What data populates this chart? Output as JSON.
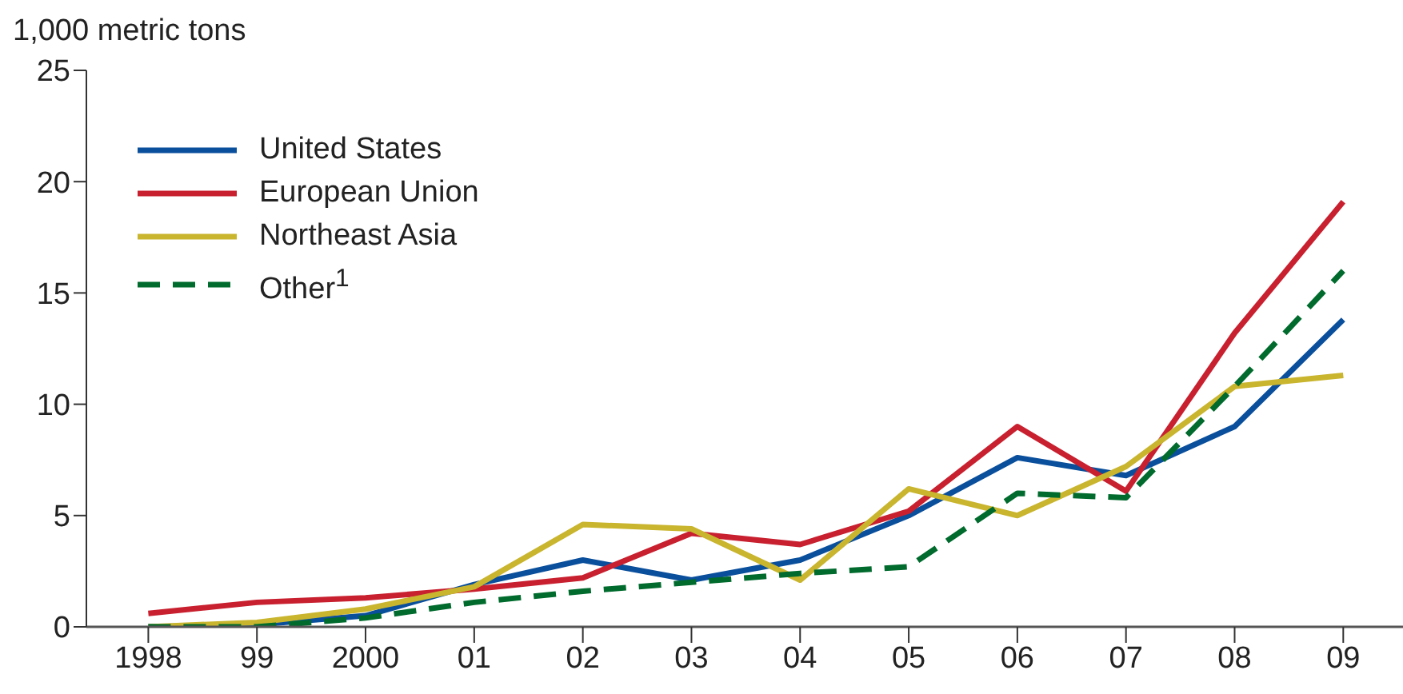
{
  "chart_data": {
    "type": "line",
    "ylabel": "1,000 metric tons",
    "categories": [
      "1998",
      "99",
      "2000",
      "01",
      "02",
      "03",
      "04",
      "05",
      "06",
      "07",
      "08",
      "09"
    ],
    "series": [
      {
        "name": "United States",
        "color": "#0a4f9c",
        "values": [
          0,
          0.1,
          0.5,
          1.9,
          3.0,
          2.1,
          3.0,
          5.0,
          7.6,
          6.8,
          9.0,
          13.8
        ]
      },
      {
        "name": "European Union",
        "color": "#c8202f",
        "values": [
          0.6,
          1.1,
          1.3,
          1.7,
          2.2,
          4.2,
          3.7,
          5.2,
          9.0,
          6.1,
          13.2,
          19.1
        ]
      },
      {
        "name": "Northeast Asia",
        "color": "#c9b52e",
        "values": [
          0,
          0.2,
          0.8,
          1.8,
          4.6,
          4.4,
          2.1,
          6.2,
          5.0,
          7.2,
          10.8,
          11.3
        ]
      },
      {
        "name": "Other$^{1}$",
        "color": "#006b2d",
        "line_style": "dashed",
        "values": [
          0,
          0,
          0.4,
          1.1,
          1.6,
          2.0,
          2.4,
          2.7,
          6.0,
          5.8,
          10.8,
          16.0
        ]
      }
    ],
    "ylim": [
      0,
      25
    ],
    "yticks": [
      0,
      5,
      10,
      15,
      20,
      25
    ],
    "grid": false,
    "legend": "top left",
    "marker": "none",
    "line_style": "solid"
  }
}
